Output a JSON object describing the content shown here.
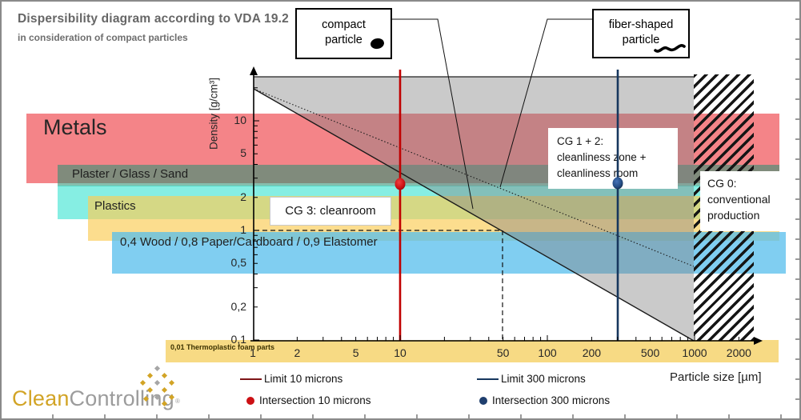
{
  "header": {
    "title": "Dispersibility diagram according to VDA 19.2",
    "subtitle": "in consideration of compact particles"
  },
  "bands": [
    {
      "name": "metals",
      "label": "Metals",
      "color": "rgba(240,85,90,0.72)",
      "density_range": [
        3.9,
        12
      ]
    },
    {
      "name": "plaster-glass-sand",
      "label": "Plaster / Glass / Sand",
      "color": "rgba(45,145,115,0.58)",
      "density_range": [
        2.4,
        4.0
      ]
    },
    {
      "name": "plastics-upper",
      "label": "Plastics",
      "color": "rgba(60,228,210,0.62)",
      "density_range": [
        1.25,
        2.55
      ]
    },
    {
      "name": "plastics-lower",
      "label": "",
      "color": "rgba(250,205,88,0.68)",
      "density_range": [
        0.79,
        2.05
      ]
    },
    {
      "name": "wood-paper-elastomer",
      "label": "0,4 Wood / 0,8 Paper/Cardboard / 0,9 Elastomer",
      "color": "rgba(85,190,236,0.75)",
      "density_range": [
        0.39,
        0.95
      ]
    },
    {
      "name": "thermoplastic-foam",
      "label": "0,01 Thermoplastic foam parts",
      "color": "rgba(247,216,125,0.95)",
      "density": 0.01
    }
  ],
  "callouts": {
    "compact": {
      "lines": [
        "compact",
        "particle"
      ]
    },
    "fiber": {
      "lines": [
        "fiber-shaped",
        "particle"
      ]
    },
    "cg12": {
      "lines": [
        "CG 1 + 2:",
        "cleanliness zone +",
        "cleanliness room"
      ]
    },
    "cg3": {
      "label": "CG 3: cleanroom"
    },
    "cg0": {
      "lines": [
        "CG 0:",
        "conventional",
        "production"
      ]
    }
  },
  "legend": [
    {
      "type": "line",
      "color": "#7e1518",
      "label": "Limit 10 microns"
    },
    {
      "type": "line",
      "color": "#17375e",
      "label": "Limit 300 microns"
    },
    {
      "type": "dot",
      "color": "#cc1014",
      "label": "Intersection 10 microns"
    },
    {
      "type": "dot",
      "color": "#1f3f6e",
      "label": "Intersection 300 microns"
    }
  ],
  "logo": {
    "text_primary": "Clean",
    "text_secondary": "Controlling",
    "registered": "®"
  },
  "chart_data": {
    "type": "line",
    "title": "Dispersibility diagram according to VDA 19.2",
    "subtitle": "in consideration of compact particles",
    "xlabel": "Particle size [µm]",
    "ylabel": "Density [g/cm³]",
    "x_scale": "log",
    "y_scale": "log",
    "xlim": [
      1,
      3000
    ],
    "ylim": [
      0.09,
      30
    ],
    "grid": false,
    "legend_position": "bottom",
    "x_axis": {
      "ticks": [
        {
          "v": 1,
          "label": "1"
        },
        {
          "v": 2,
          "label": "2"
        },
        {
          "v": 5,
          "label": "5"
        },
        {
          "v": 10,
          "label": "10"
        },
        {
          "v": 50,
          "label": "50"
        },
        {
          "v": 100,
          "label": "100"
        },
        {
          "v": 200,
          "label": "200"
        },
        {
          "v": 500,
          "label": "500"
        },
        {
          "v": 1000,
          "label": "1000"
        },
        {
          "v": 2000,
          "label": "2000"
        }
      ],
      "major_ticks": [
        10,
        100,
        1000
      ],
      "minor_ticks": [
        2,
        3,
        4,
        5,
        6,
        7,
        8,
        9,
        20,
        30,
        40,
        50,
        60,
        70,
        80,
        90,
        200,
        300,
        400,
        500,
        600,
        700,
        800,
        900,
        2000
      ]
    },
    "y_axis": {
      "ticks": [
        {
          "v": 10,
          "label": "10"
        },
        {
          "v": 5,
          "label": "5"
        },
        {
          "v": 2,
          "label": "2"
        },
        {
          "v": 1,
          "label": "1"
        },
        {
          "v": 0.5,
          "label": "0,5"
        },
        {
          "v": 0.2,
          "label": "0,2"
        },
        {
          "v": 0.1,
          "label": "0,1"
        }
      ],
      "major_ticks": [
        0.1,
        1,
        10
      ],
      "minor_ticks": [
        0.2,
        0.3,
        0.4,
        0.5,
        0.6,
        0.7,
        0.8,
        0.9,
        2,
        3,
        4,
        5,
        6,
        7,
        8,
        9,
        20
      ]
    },
    "series": [
      {
        "name": "compact particle limit",
        "style": "solid",
        "x": [
          1,
          1000
        ],
        "y": [
          20,
          0.1
        ]
      },
      {
        "name": "fiber-shaped particle limit",
        "style": "dotted",
        "x": [
          1,
          1000
        ],
        "y": [
          20,
          0.46
        ]
      }
    ],
    "limit_lines": [
      {
        "name": "Limit 10 microns",
        "x": 10,
        "color": "#c00000"
      },
      {
        "name": "Limit 300 microns",
        "x": 300,
        "color": "#17375e"
      }
    ],
    "points": [
      {
        "name": "Intersection 10 microns",
        "x": 10,
        "y": 2.6,
        "color": "#cc1014"
      },
      {
        "name": "Intersection 300 microns",
        "x": 300,
        "y": 2.6,
        "color": "#1f3f6e"
      }
    ],
    "reference_dashed_line": {
      "density": 1,
      "particle_size": 50
    },
    "zones": [
      "CG 3: cleanroom",
      "CG 1 + 2: cleanliness zone + cleanliness room",
      "CG 0: conventional production"
    ],
    "material_bands": [
      {
        "label": "Metals",
        "density_range": [
          3.9,
          12
        ]
      },
      {
        "label": "Plaster / Glass / Sand",
        "density_range": [
          2.4,
          4.0
        ]
      },
      {
        "label": "Plastics",
        "density_range": [
          0.79,
          2.55
        ]
      },
      {
        "label": "0,4 Wood / 0,8 Paper/Cardboard / 0,9 Elastomer",
        "density_range": [
          0.39,
          0.95
        ]
      },
      {
        "label": "0,01 Thermoplastic foam parts",
        "density_range": [
          0.01,
          0.01
        ]
      }
    ]
  }
}
